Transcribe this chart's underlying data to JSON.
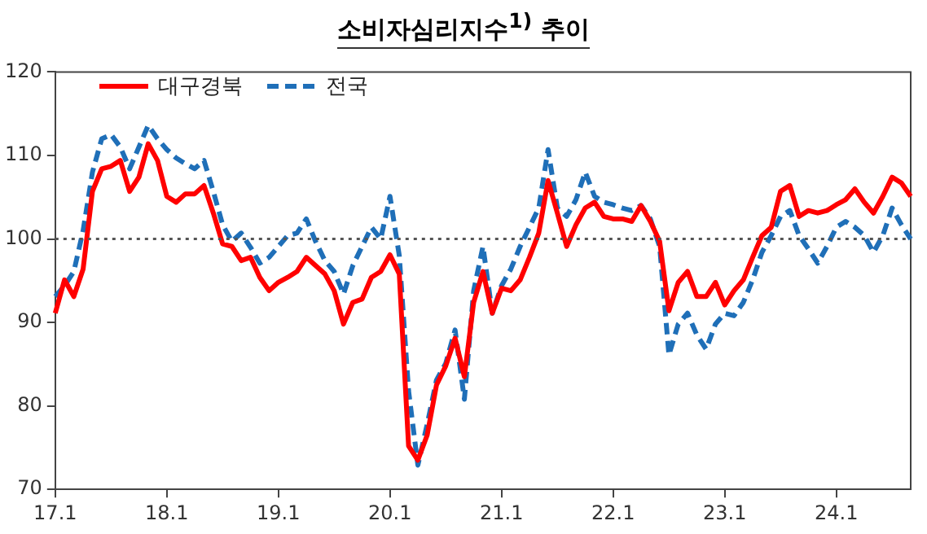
{
  "chart_data": {
    "type": "line",
    "title": "소비자심리지수$^{1)}$ 추이",
    "categories": [
      "17.1",
      null,
      null,
      null,
      null,
      null,
      null,
      null,
      null,
      null,
      null,
      null,
      "18.1",
      null,
      null,
      null,
      null,
      null,
      null,
      null,
      null,
      null,
      null,
      null,
      "19.1",
      null,
      null,
      null,
      null,
      null,
      null,
      null,
      null,
      null,
      null,
      null,
      "20.1",
      null,
      null,
      null,
      null,
      null,
      null,
      null,
      null,
      null,
      null,
      null,
      "21.1",
      null,
      null,
      null,
      null,
      null,
      null,
      null,
      null,
      null,
      null,
      null,
      "22.1",
      null,
      null,
      null,
      null,
      null,
      null,
      null,
      null,
      null,
      null,
      null,
      "23.1",
      null,
      null,
      null,
      null,
      null,
      null,
      null,
      null,
      null,
      null,
      null,
      "24.1",
      null,
      null,
      null,
      null,
      null,
      null,
      null,
      null
    ],
    "series": [
      {
        "name": "대구경북",
        "color": "#ff0000",
        "line_style": "solid",
        "values": [
          91.1,
          95.1,
          93.1,
          96.4,
          105.7,
          108.4,
          108.7,
          109.4,
          105.7,
          107.4,
          111.4,
          109.4,
          105.1,
          104.4,
          105.4,
          105.4,
          106.4,
          103.1,
          99.4,
          99.1,
          97.4,
          97.8,
          95.4,
          93.8,
          94.8,
          95.4,
          96.1,
          97.8,
          96.8,
          95.8,
          93.8,
          89.8,
          92.4,
          92.8,
          95.4,
          96.1,
          98.1,
          95.8,
          75.2,
          73.5,
          76.5,
          82.5,
          84.8,
          88.1,
          83.5,
          92.4,
          96.1,
          91.1,
          94.1,
          93.8,
          95.1,
          97.8,
          100.7,
          107,
          103.1,
          99.1,
          101.7,
          103.7,
          104.4,
          102.7,
          102.4,
          102.4,
          102.1,
          104,
          102.1,
          99.7,
          91.4,
          94.8,
          96.1,
          93.1,
          93.1,
          94.8,
          92.1,
          93.8,
          95.1,
          97.8,
          100.4,
          101.4,
          105.7,
          106.4,
          102.7,
          103.4,
          103.1,
          103.4,
          104.1,
          104.7,
          106,
          104.4,
          103.1,
          105.1,
          107.4,
          106.7,
          105.1
        ]
      },
      {
        "name": "전국",
        "color": "#1f6fb8",
        "line_style": "dashed",
        "values": [
          93.1,
          94.4,
          96.1,
          101,
          108,
          112,
          112.5,
          111,
          108.4,
          111,
          113.6,
          112,
          110.7,
          109.7,
          109,
          108.4,
          109.4,
          105.7,
          101.7,
          99.7,
          100.7,
          99,
          97.1,
          97.8,
          99.1,
          100.4,
          100.7,
          102.4,
          99.7,
          97.4,
          96.1,
          93.4,
          96.8,
          99.1,
          101.4,
          100,
          105.1,
          98,
          81.8,
          72.9,
          77.8,
          83.1,
          85.1,
          89.1,
          80.8,
          93.8,
          99.1,
          91.1,
          94.4,
          96.4,
          99.1,
          101.4,
          103.7,
          110.7,
          103.7,
          102.7,
          104.7,
          108,
          105.1,
          104.4,
          104.1,
          103.7,
          103.4,
          104,
          102.4,
          99.1,
          86.1,
          89.8,
          91.1,
          88.5,
          86.8,
          89.8,
          91.1,
          90.8,
          92.4,
          95.1,
          98.4,
          100.4,
          102.7,
          103.4,
          100.4,
          98.8,
          97.1,
          99.1,
          101.4,
          102.1,
          101.4,
          100.4,
          98.4,
          100.4,
          103.7,
          101.7,
          100
        ]
      }
    ],
    "ylim": [
      70,
      120
    ],
    "yticks": [
      70,
      80,
      90,
      100,
      110,
      120
    ],
    "grid": false,
    "legend": "top left",
    "marker": "none",
    "ref_lines": [
      {
        "axis": "y",
        "value": 100,
        "color": "#555555",
        "line_style": "dotted"
      }
    ]
  }
}
